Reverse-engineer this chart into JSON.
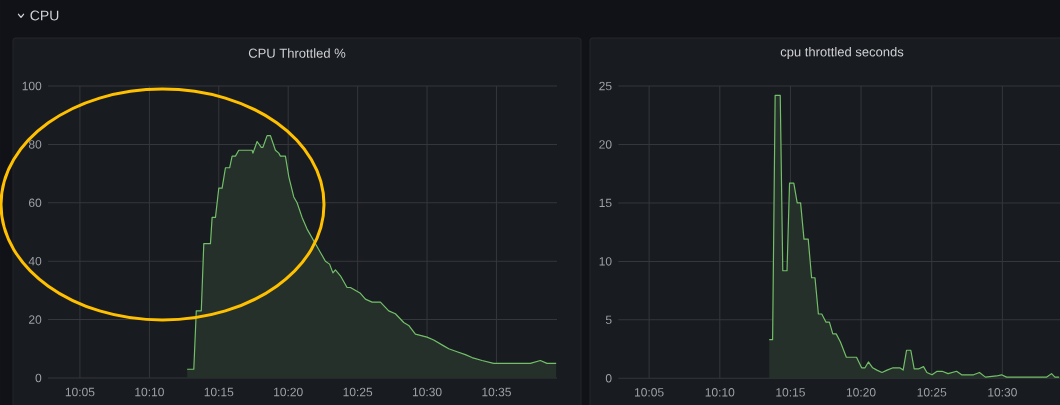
{
  "chart_data": [
    {
      "type": "other",
      "title": "CPU"
    },
    {
      "type": "area",
      "title": "CPU Throttled %",
      "color": "#73bf69",
      "grid": true,
      "xlim": [
        10.045,
        10.656
      ],
      "ylim": [
        0,
        100
      ],
      "xticks": [
        {
          "value": 10.0833,
          "label": "10:05"
        },
        {
          "value": 10.1667,
          "label": "10:10"
        },
        {
          "value": 10.25,
          "label": "10:15"
        },
        {
          "value": 10.3333,
          "label": "10:20"
        },
        {
          "value": 10.4167,
          "label": "10:25"
        },
        {
          "value": 10.5,
          "label": "10:30"
        },
        {
          "value": 10.5833,
          "label": "10:35"
        }
      ],
      "yticks": [
        0,
        20,
        40,
        60,
        80,
        100
      ],
      "x": [
        10.212,
        10.22,
        10.223,
        10.229,
        10.232,
        10.24,
        10.242,
        10.246,
        10.25,
        10.254,
        10.258,
        10.263,
        10.266,
        10.27,
        10.274,
        10.29,
        10.291,
        10.296,
        10.301,
        10.303,
        10.308,
        10.312,
        10.318,
        10.322,
        10.324,
        10.33,
        10.334,
        10.34,
        10.344,
        10.35,
        10.356,
        10.364,
        10.372,
        10.378,
        10.383,
        10.387,
        10.39,
        10.396,
        10.404,
        10.408,
        10.42,
        10.426,
        10.434,
        10.444,
        10.454,
        10.462,
        10.472,
        10.478,
        10.486,
        10.5,
        10.508,
        10.52,
        10.526,
        10.536,
        10.546,
        10.554,
        10.566,
        10.58,
        10.596,
        10.608,
        10.624,
        10.636,
        10.644,
        10.655
      ],
      "values": [
        3,
        3,
        23,
        23,
        46,
        46,
        55,
        55,
        65,
        65,
        72,
        72,
        76,
        76,
        78,
        78,
        77,
        81,
        79,
        79,
        83,
        83,
        78,
        77,
        76,
        76,
        69,
        62,
        60,
        55,
        51,
        47,
        43,
        40,
        39,
        36,
        37,
        35,
        31,
        31,
        29,
        27,
        26,
        26,
        23,
        22,
        19,
        18,
        15,
        14,
        13,
        11,
        10,
        9,
        8,
        7,
        6,
        5,
        5,
        5,
        5,
        6,
        5,
        5
      ]
    },
    {
      "type": "area",
      "title": "cpu throttled seconds",
      "color": "#73bf69",
      "grid": true,
      "xlim": [
        10.047,
        10.568
      ],
      "ylim": [
        0,
        25
      ],
      "xticks": [
        {
          "value": 10.0833,
          "label": "10:05"
        },
        {
          "value": 10.1667,
          "label": "10:10"
        },
        {
          "value": 10.25,
          "label": "10:15"
        },
        {
          "value": 10.3333,
          "label": "10:20"
        },
        {
          "value": 10.4167,
          "label": "10:25"
        },
        {
          "value": 10.5,
          "label": "10:30"
        }
      ],
      "yticks": [
        0,
        5,
        10,
        15,
        20,
        25
      ],
      "x": [
        10.225,
        10.229,
        10.232,
        10.238,
        10.241,
        10.246,
        10.249,
        10.254,
        10.258,
        10.262,
        10.266,
        10.271,
        10.275,
        10.279,
        10.283,
        10.287,
        10.292,
        10.296,
        10.3,
        10.304,
        10.309,
        10.316,
        10.328,
        10.334,
        10.338,
        10.342,
        10.347,
        10.352,
        10.358,
        10.364,
        10.371,
        10.379,
        10.383,
        10.387,
        10.392,
        10.396,
        10.401,
        10.407,
        10.411,
        10.417,
        10.423,
        10.429,
        10.436,
        10.446,
        10.452,
        10.466,
        10.473,
        10.48,
        10.493,
        10.499,
        10.505,
        10.533,
        10.552,
        10.558,
        10.562,
        10.567
      ],
      "values": [
        3.3,
        3.3,
        24.2,
        24.2,
        9.2,
        9.2,
        16.7,
        16.7,
        15.0,
        15.0,
        11.9,
        11.9,
        8.6,
        8.6,
        5.5,
        5.5,
        4.8,
        4.8,
        3.8,
        3.8,
        3.1,
        1.8,
        1.8,
        0.9,
        0.9,
        1.4,
        0.9,
        0.7,
        0.5,
        0.7,
        0.9,
        0.9,
        0.7,
        2.4,
        2.4,
        0.8,
        0.8,
        1.0,
        0.5,
        0.3,
        0.6,
        0.6,
        0.4,
        0.6,
        0.3,
        0.3,
        0.5,
        0.1,
        0.2,
        0.3,
        0.1,
        0.1,
        0.1,
        0.4,
        0.1,
        0.1
      ]
    }
  ]
}
